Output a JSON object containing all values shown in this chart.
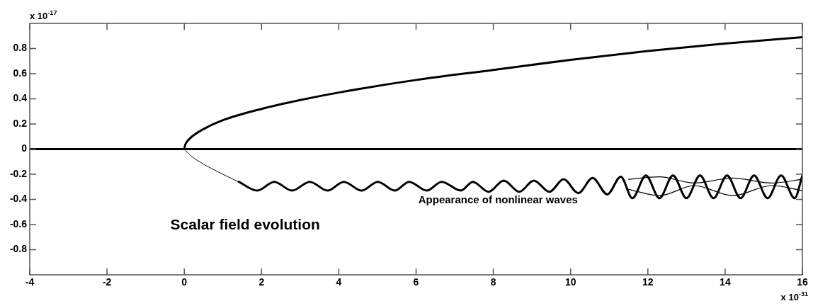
{
  "chart_data": {
    "type": "line",
    "xlim": [
      -4,
      16
    ],
    "xticks": [
      -4,
      -2,
      0,
      2,
      4,
      6,
      8,
      10,
      12,
      14,
      16
    ],
    "ylim": [
      -1,
      1
    ],
    "yticks": [
      -0.8,
      -0.6,
      -0.4,
      -0.2,
      0,
      0.2,
      0.4,
      0.6,
      0.8
    ],
    "grid": false,
    "legend": false,
    "marker": "none",
    "line_style": "solid",
    "annotations": [
      "Scalar field evolution",
      "Appearance of nonlinear waves",
      "x 10$^{-17}$",
      "x 10$^{-31}$"
    ],
    "series": [
      {
        "color": "#000000",
        "x": [
          -4,
          16
        ],
        "values": [
          0,
          0
        ]
      },
      {
        "color": "#000000",
        "x": [
          0,
          0.02,
          0.05,
          0.1,
          0.2,
          0.5,
          1,
          2,
          3,
          4,
          6,
          8,
          10,
          12,
          14,
          16
        ],
        "values": [
          0,
          0.03,
          0.05,
          0.07,
          0.1,
          0.16,
          0.23,
          0.32,
          0.39,
          0.45,
          0.55,
          0.63,
          0.71,
          0.78,
          0.84,
          0.89
        ]
      },
      {
        "color": "#000000",
        "x": [
          0,
          0.2,
          0.5,
          1,
          1.4
        ],
        "values": [
          0,
          -0.06,
          -0.12,
          -0.2,
          -0.26
        ]
      },
      {
        "color": "#000000",
        "x": [
          1.41,
          1.89,
          2.33,
          2.79,
          3.25,
          3.71,
          4.13,
          4.59,
          5.01,
          5.45,
          5.82,
          6.28,
          6.66,
          7.16,
          7.47,
          7.88,
          8.27,
          8.67,
          9.05,
          9.45,
          9.82,
          10.2,
          10.57,
          10.95,
          11.3,
          11.6,
          11.95,
          12.3,
          12.65,
          13.0,
          13.35,
          13.7,
          14.05,
          14.4,
          14.75,
          15.1,
          15.45,
          15.8,
          16
        ],
        "values": [
          -0.26,
          -0.33,
          -0.26,
          -0.33,
          -0.26,
          -0.33,
          -0.26,
          -0.33,
          -0.26,
          -0.33,
          -0.26,
          -0.33,
          -0.26,
          -0.33,
          -0.26,
          -0.34,
          -0.25,
          -0.34,
          -0.25,
          -0.34,
          -0.24,
          -0.35,
          -0.23,
          -0.36,
          -0.22,
          -0.39,
          -0.21,
          -0.39,
          -0.21,
          -0.39,
          -0.21,
          -0.39,
          -0.21,
          -0.39,
          -0.21,
          -0.39,
          -0.21,
          -0.39,
          -0.21
        ]
      },
      {
        "color": "#000000",
        "x": [
          11.5,
          12.3,
          13.2,
          14.2,
          15.2,
          16
        ],
        "values": [
          -0.32,
          -0.37,
          -0.29,
          -0.37,
          -0.29,
          -0.33
        ]
      },
      {
        "color": "#000000",
        "x": [
          11.5,
          12.3,
          13.2,
          14.2,
          15.2,
          16
        ],
        "values": [
          -0.24,
          -0.22,
          -0.27,
          -0.23,
          -0.27,
          -0.24
        ]
      }
    ]
  }
}
